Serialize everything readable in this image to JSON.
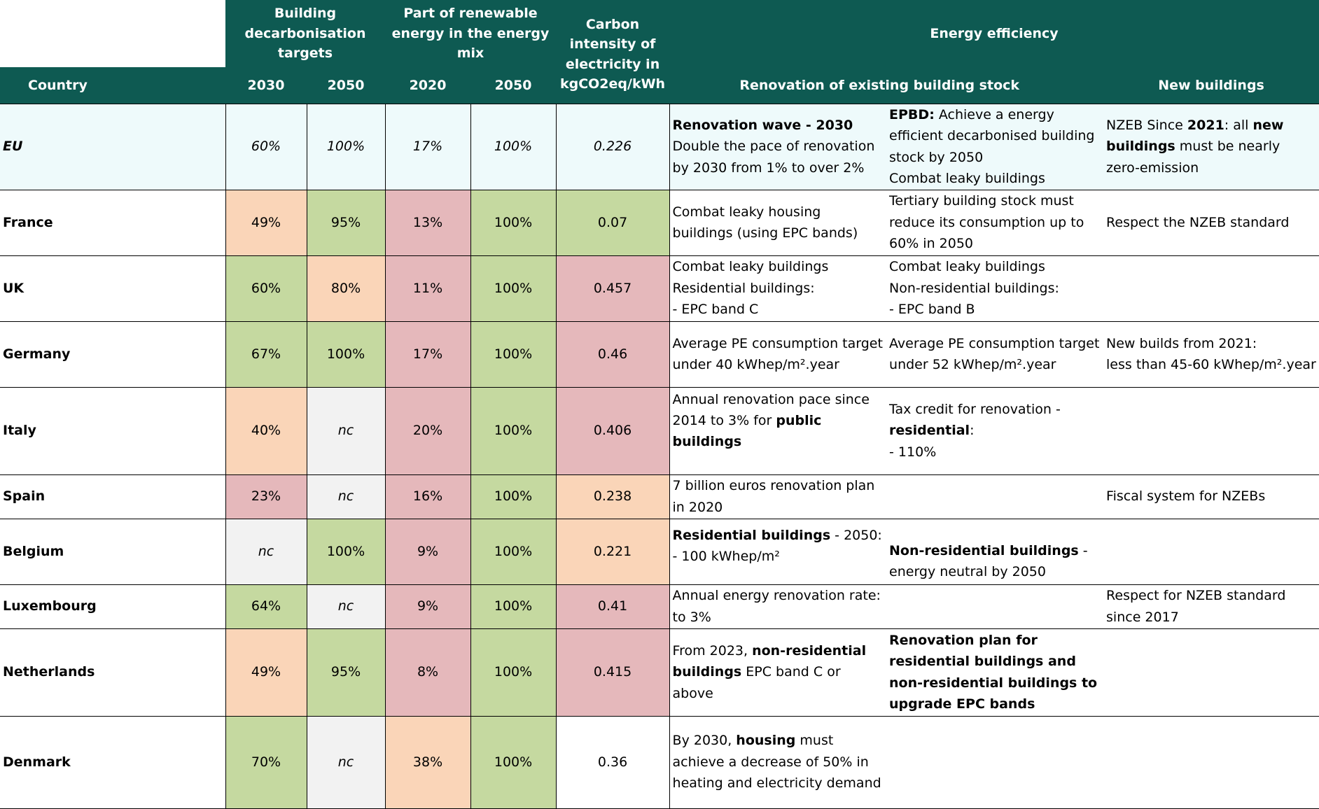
{
  "header": {
    "building_targets": "Building decarbonisation targets",
    "renewable_part": "Part of renewable energy in the energy mix",
    "carbon_intensity": "Carbon intensity of electricity in kgCO2eq/kWh",
    "energy_efficiency": "Energy efficiency",
    "country": "Country",
    "y2030": "2030",
    "y2050": "2050",
    "y2020": "2020",
    "r2050": "2050",
    "renovation": "Renovation of existing building stock",
    "new_buildings": "New buildings"
  },
  "colors": {
    "header": "#0e5a52",
    "green": "#c5d9a0",
    "orange": "#fad5b8",
    "red": "#e5b8bb",
    "grey": "#f2f2f2",
    "eu_row": "#eefafb"
  },
  "rows": [
    {
      "country": "EU",
      "t2030": "60%",
      "t2050": "100%",
      "r2020": "17%",
      "r2050": "100%",
      "carbon": "0.226",
      "reno1": [
        "Renovation wave - 2030",
        "Double the pace of renovation by 2030 from 1% to over 2%"
      ],
      "reno2": [
        "EPBD:",
        " Achieve a energy efficient decarbonised building stock by 2050",
        "Combat leaky buildings"
      ],
      "newb": [
        "NZEB Since ",
        "2021",
        ": all ",
        "new buildings",
        " must be nearly zero-emission"
      ]
    },
    {
      "country": "France",
      "t2030": "49%",
      "t2050": "95%",
      "r2020": "13%",
      "r2050": "100%",
      "carbon": "0.07",
      "reno1": [
        "Combat leaky housing buildings (using EPC bands)"
      ],
      "reno2": [
        "Tertiary building stock must reduce its consumption up to 60% in 2050"
      ],
      "newb": [
        "Respect the NZEB standard"
      ]
    },
    {
      "country": "UK",
      "t2030": "60%",
      "t2050": "80%",
      "r2020": "11%",
      "r2050": "100%",
      "carbon": "0.457",
      "reno1": [
        "Combat leaky buildings",
        "Residential buildings:",
        "- EPC band C"
      ],
      "reno2": [
        "Combat leaky buildings",
        "Non-residential buildings:",
        "- EPC band B"
      ],
      "newb": [
        ""
      ]
    },
    {
      "country": "Germany",
      "t2030": "67%",
      "t2050": "100%",
      "r2020": "17%",
      "r2050": "100%",
      "carbon": "0.46",
      "reno1": [
        "Average PE consumption target under 40 kWhep/m².year"
      ],
      "reno2": [
        "Average PE consumption target under 52 kWhep/m².year"
      ],
      "newb": [
        "New builds from 2021:",
        "less than 45-60 kWhep/m².year"
      ]
    },
    {
      "country": "Italy",
      "t2030": "40%",
      "t2050": "nc",
      "r2020": "20%",
      "r2050": "100%",
      "carbon": "0.406",
      "reno1": [
        "Annual renovation pace since 2014 to 3% for ",
        "public buildings"
      ],
      "reno2": [
        "Tax credit for renovation -",
        "residential",
        ":",
        "- 110%"
      ],
      "newb": [
        ""
      ]
    },
    {
      "country": "Spain",
      "t2030": "23%",
      "t2050": "nc",
      "r2020": "16%",
      "r2050": "100%",
      "carbon": "0.238",
      "reno1": [
        "7 billion euros renovation plan in 2020"
      ],
      "reno2": [
        ""
      ],
      "newb": [
        "Fiscal system for NZEBs"
      ]
    },
    {
      "country": "Belgium",
      "t2030": "nc",
      "t2050": "100%",
      "r2020": "9%",
      "r2050": "100%",
      "carbon": "0.221",
      "reno1": [
        "Residential buildings",
        " - 2050:",
        "- 100 kWhep/m²"
      ],
      "reno2": [
        "Non-residential buildings",
        " -",
        "energy neutral by 2050"
      ],
      "newb": [
        ""
      ]
    },
    {
      "country": "Luxembourg",
      "t2030": "64%",
      "t2050": "nc",
      "r2020": "9%",
      "r2050": "100%",
      "carbon": "0.41",
      "reno1": [
        "Annual energy renovation rate: to 3%"
      ],
      "reno2": [
        ""
      ],
      "newb": [
        "Respect for NZEB standard since 2017"
      ]
    },
    {
      "country": "Netherlands",
      "t2030": "49%",
      "t2050": "95%",
      "r2020": "8%",
      "r2050": "100%",
      "carbon": "0.415",
      "reno1": [
        "From 2023,  ",
        "non-residential buildings",
        " EPC band C or above"
      ],
      "reno2": [
        "Renovation plan for residential buildings and non-residential buildings to upgrade EPC bands"
      ],
      "newb": [
        ""
      ]
    },
    {
      "country": "Denmark",
      "t2030": "70%",
      "t2050": "nc",
      "r2020": "38%",
      "r2050": "100%",
      "carbon": "0.36",
      "reno1": [
        "By 2030,  ",
        "housing",
        " must achieve a decrease of 50% in heating and electricity demand"
      ],
      "reno2": [
        ""
      ],
      "newb": [
        ""
      ]
    }
  ]
}
